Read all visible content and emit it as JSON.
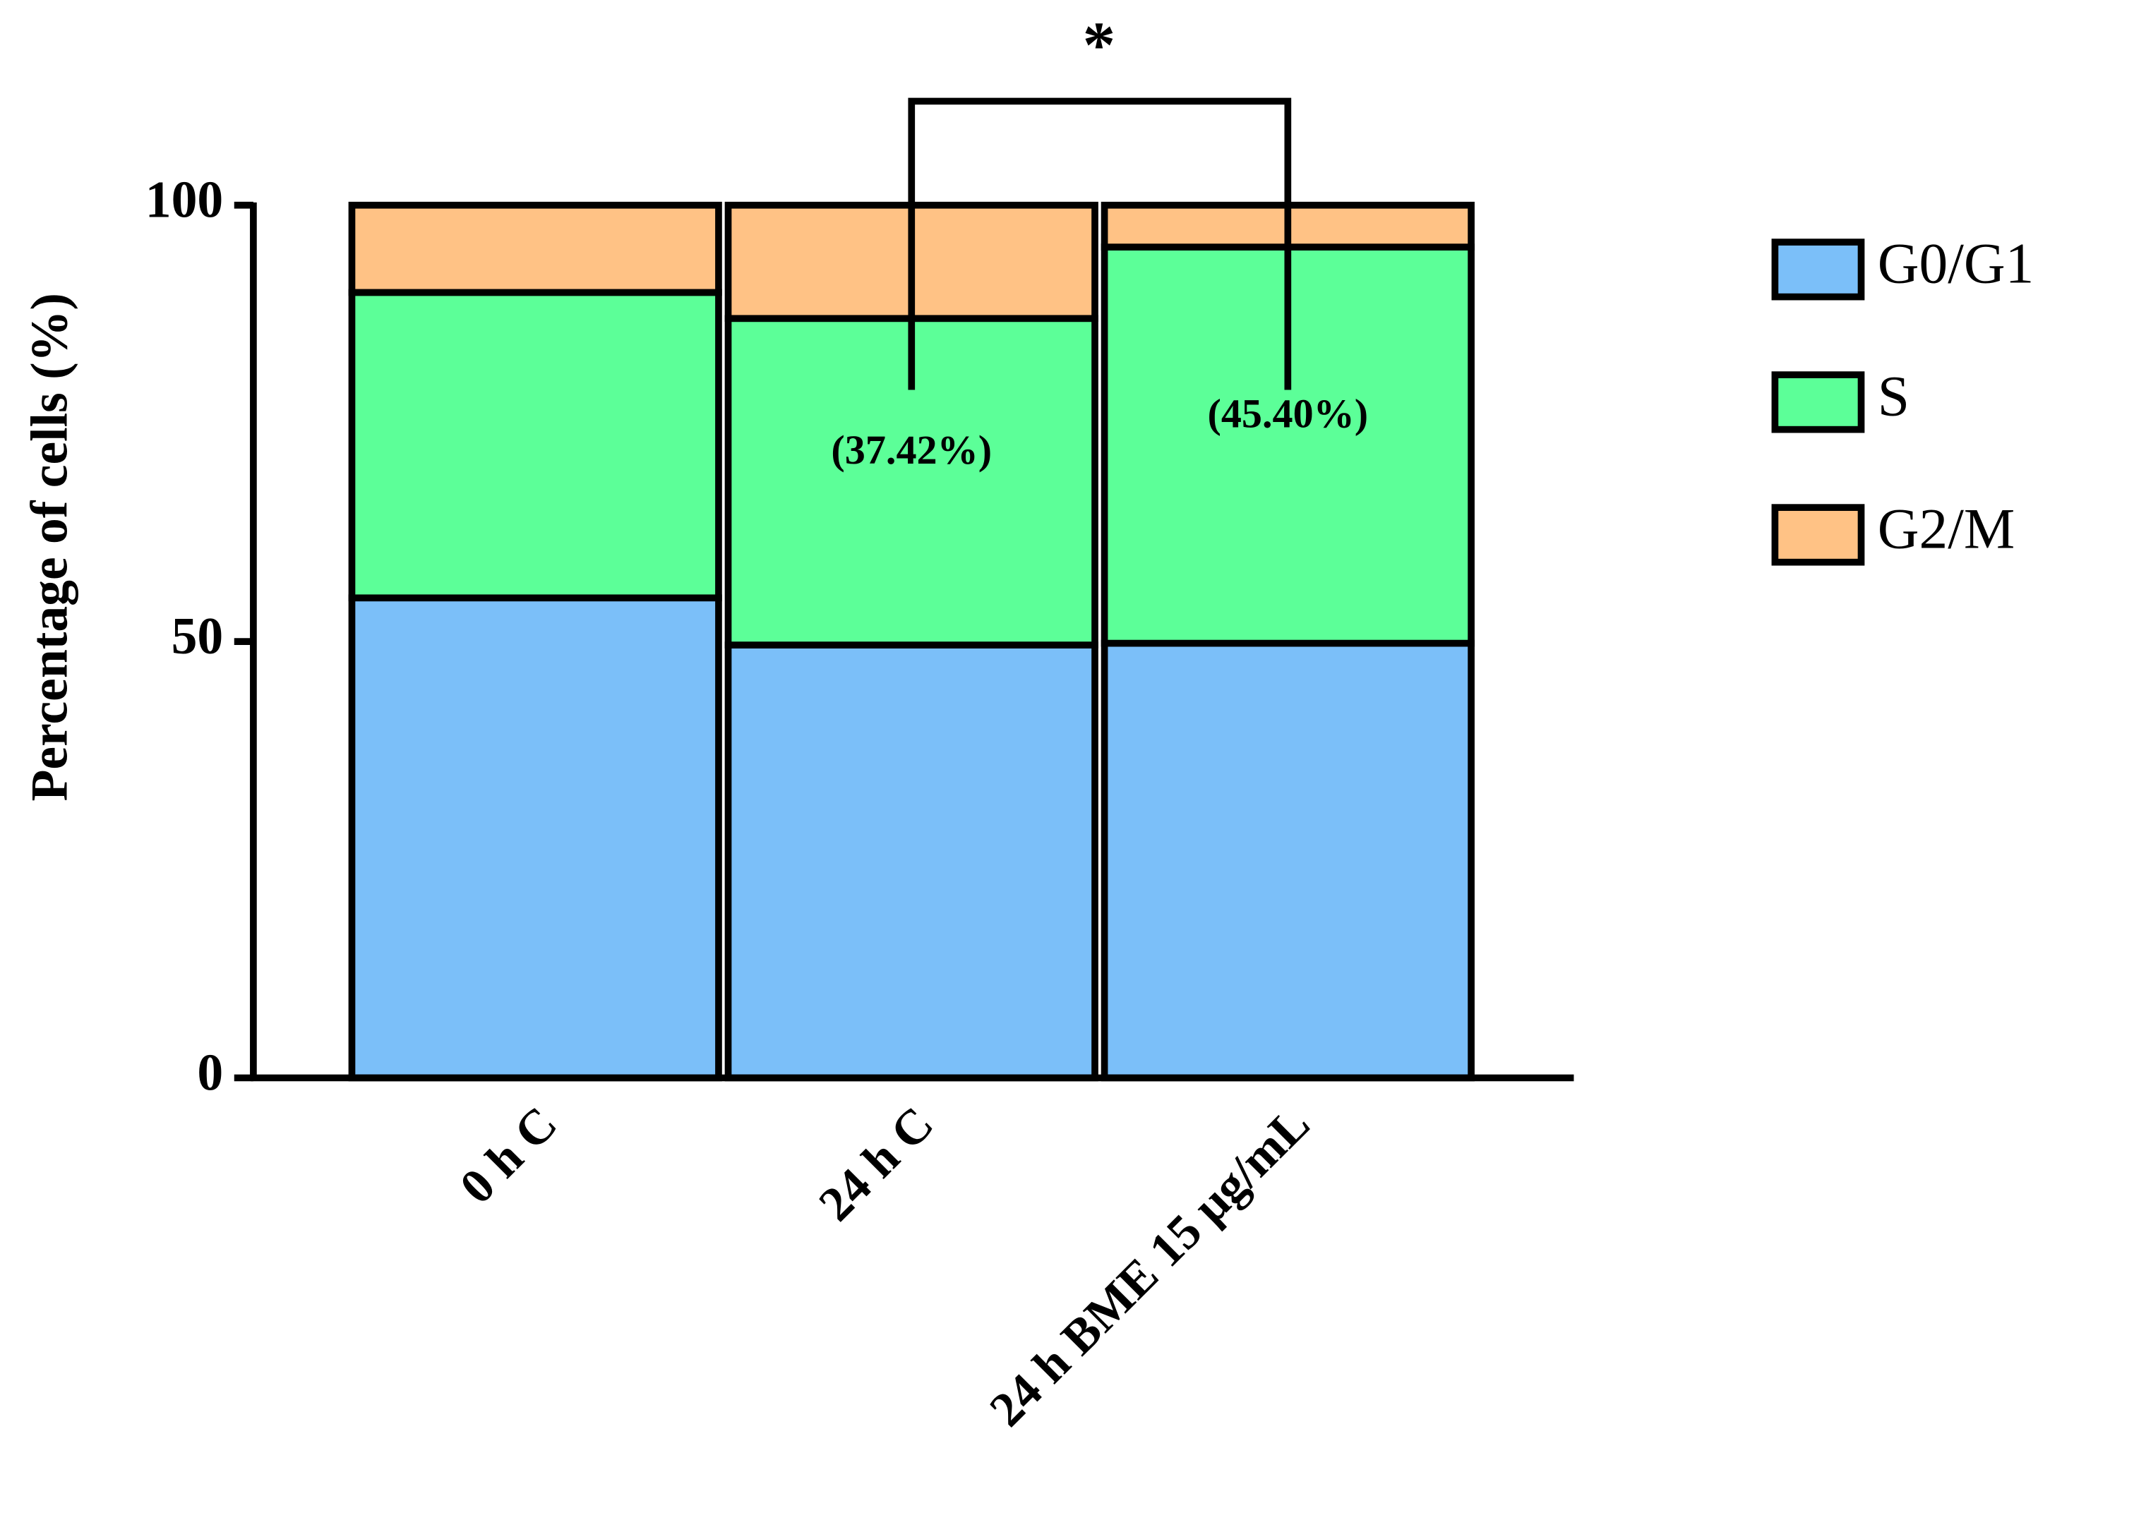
{
  "chart_data": {
    "type": "stacked_bar",
    "ylabel": "Percentage of cells (%)",
    "categories": [
      "0 h C",
      "24 h C",
      "24 h BME 15 μg/mL"
    ],
    "series": [
      {
        "name": "G0/G1",
        "color": "#7bbff9",
        "values": [
          55.0,
          49.6,
          49.8
        ]
      },
      {
        "name": "S",
        "color": "#5cff98",
        "values": [
          35.0,
          37.42,
          45.4
        ],
        "value_labels": [
          null,
          "(37.42%)",
          "(45.40%)"
        ]
      },
      {
        "name": "G2/M",
        "color": "#ffc285",
        "values": [
          10.0,
          12.98,
          4.8
        ]
      }
    ],
    "ylim": [
      0,
      100
    ],
    "yticks": [
      0,
      50,
      100
    ],
    "annotation": "*"
  }
}
